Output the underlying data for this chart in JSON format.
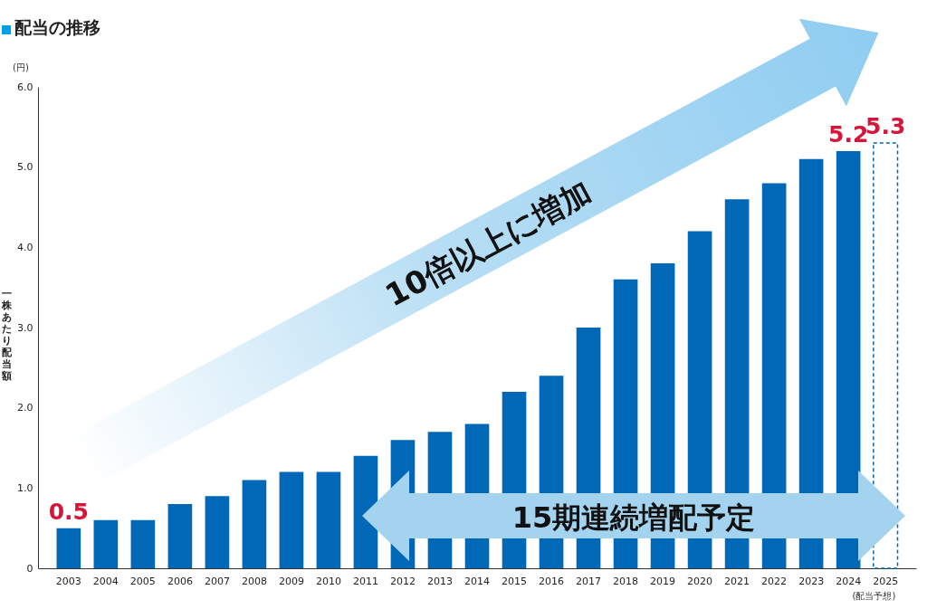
{
  "chart_data": {
    "type": "bar",
    "title": "配当の推移",
    "ylabel": "一株あたり配当額",
    "categories": [
      "2003",
      "2004",
      "2005",
      "2006",
      "2007",
      "2008",
      "2009",
      "2010",
      "2011",
      "2012",
      "2013",
      "2014",
      "2015",
      "2016",
      "2017",
      "2018",
      "2019",
      "2020",
      "2021",
      "2022",
      "2023",
      "2024",
      "2025"
    ],
    "series": [
      {
        "color": "#0068b7",
        "line_style": "solid",
        "values": [
          0.5,
          0.6,
          0.6,
          0.8,
          0.9,
          1.1,
          1.2,
          1.2,
          1.4,
          1.6,
          1.7,
          1.8,
          2.2,
          2.4,
          3.0,
          3.6,
          3.8,
          4.2,
          4.6,
          4.8,
          5.1,
          5.2,
          null
        ],
        "value_labels": [
          "0.5",
          null,
          null,
          null,
          null,
          null,
          null,
          null,
          null,
          null,
          null,
          null,
          null,
          null,
          null,
          null,
          null,
          null,
          null,
          null,
          null,
          "5.2",
          null
        ]
      },
      {
        "color": "#0068b7",
        "line_style": "dashed",
        "values": [
          null,
          null,
          null,
          null,
          null,
          null,
          null,
          null,
          null,
          null,
          null,
          null,
          null,
          null,
          null,
          null,
          null,
          null,
          null,
          null,
          null,
          null,
          5.3
        ],
        "value_labels": [
          null,
          null,
          null,
          null,
          null,
          null,
          null,
          null,
          null,
          null,
          null,
          null,
          null,
          null,
          null,
          null,
          null,
          null,
          null,
          null,
          null,
          null,
          "5.3"
        ]
      }
    ],
    "ylim": [
      0,
      6
    ],
    "yticks": [
      {
        "value": 0,
        "label": "0"
      },
      {
        "value": 1,
        "label": "1.0"
      },
      {
        "value": 2,
        "label": "2.0"
      },
      {
        "value": 3,
        "label": "3.0"
      },
      {
        "value": 4,
        "label": "4.0"
      },
      {
        "value": 5,
        "label": "5.0"
      },
      {
        "value": 6,
        "label": "6.0"
      }
    ],
    "grid": false,
    "annotations": [
      "(円)",
      "10倍以上に増加",
      "15期連続増配予定",
      "(配当予想)"
    ]
  }
}
